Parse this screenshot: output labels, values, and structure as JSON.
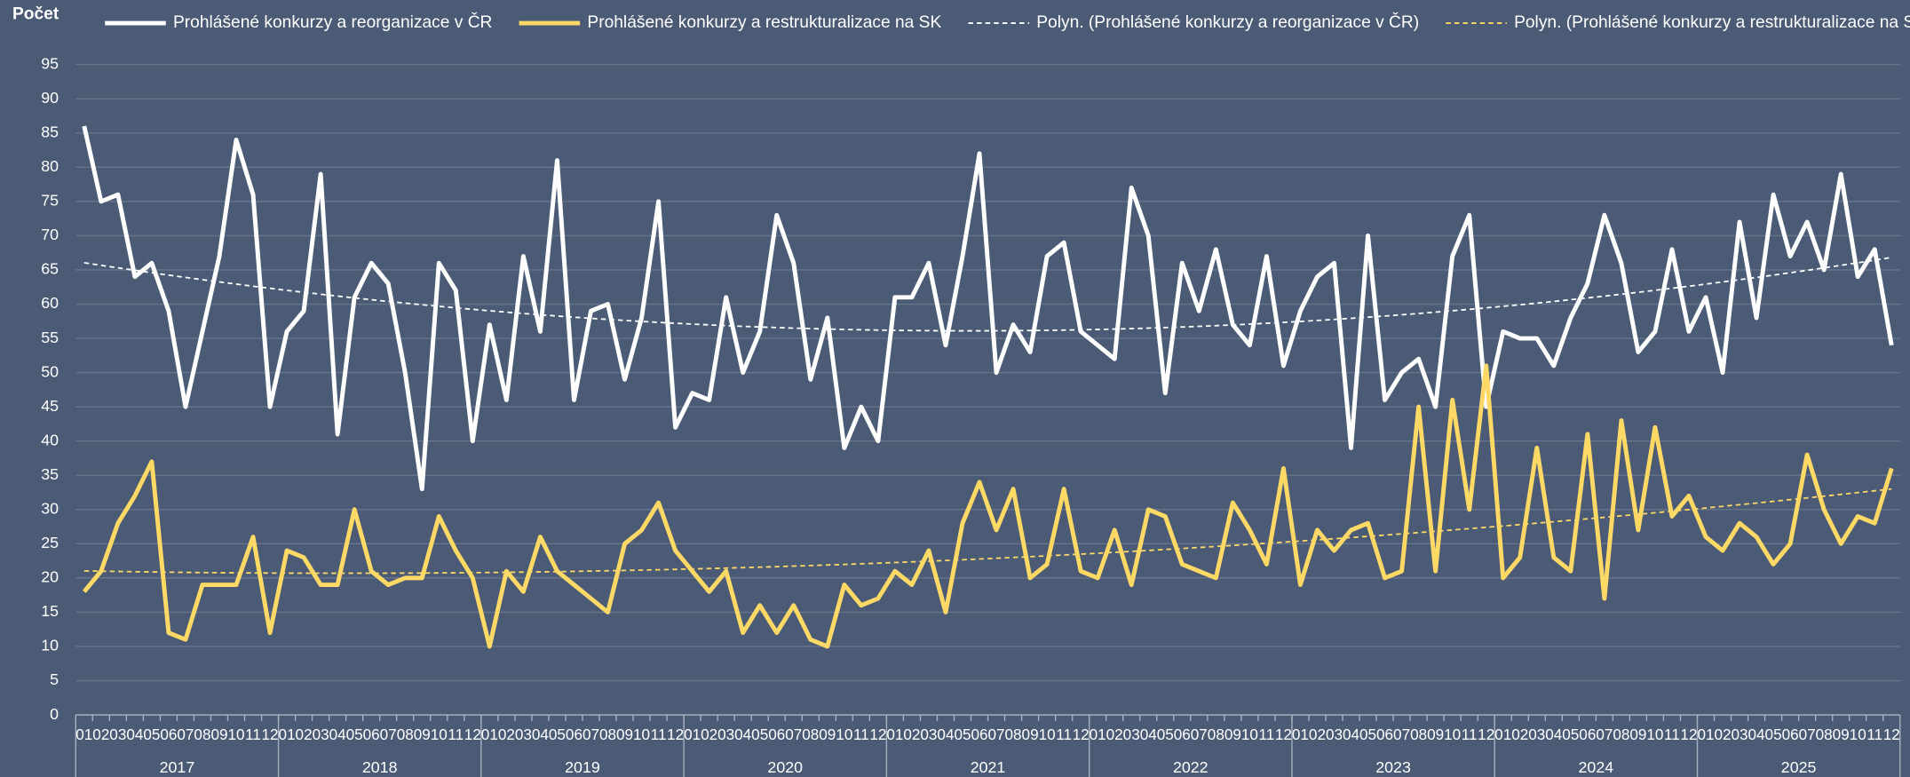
{
  "chart_data": {
    "type": "line",
    "y_axis_label": "Počet",
    "ylim": [
      0,
      95
    ],
    "yticks": [
      0,
      5,
      10,
      15,
      20,
      25,
      30,
      35,
      40,
      45,
      50,
      55,
      60,
      65,
      70,
      75,
      80,
      85,
      90,
      95
    ],
    "grid": true,
    "legend": "top",
    "categories": [
      "01",
      "02",
      "03",
      "04",
      "05",
      "06",
      "07",
      "08",
      "09",
      "10",
      "11",
      "12",
      "01",
      "02",
      "03",
      "04",
      "05",
      "06",
      "07",
      "08",
      "09",
      "10",
      "11",
      "12",
      "01",
      "02",
      "03",
      "04",
      "05",
      "06",
      "07",
      "08",
      "09",
      "10",
      "11",
      "12",
      "01",
      "02",
      "03",
      "04",
      "05",
      "06",
      "07",
      "08",
      "09",
      "10",
      "11",
      "12",
      "01",
      "02",
      "03",
      "04",
      "05",
      "06",
      "07",
      "08",
      "09",
      "10",
      "11",
      "12",
      "01",
      "02",
      "03",
      "04",
      "05",
      "06",
      "07",
      "08",
      "09",
      "10",
      "11",
      "12",
      "01",
      "02",
      "03",
      "04",
      "05",
      "06",
      "07",
      "08",
      "09",
      "10",
      "11",
      "12",
      "01",
      "02",
      "03",
      "04",
      "05",
      "06",
      "07",
      "08",
      "09",
      "10",
      "11",
      "12",
      "01",
      "02",
      "03",
      "04",
      "05",
      "06",
      "07",
      "08",
      "09",
      "10",
      "11",
      "12"
    ],
    "year_groups": [
      "2017",
      "2018",
      "2019",
      "2020",
      "2021",
      "2022",
      "2023",
      "2024",
      "2025"
    ],
    "series": [
      {
        "name": "Prohlášené konkurzy a reorganizace v ČR",
        "color": "#ffffff",
        "values": [
          86,
          75,
          76,
          64,
          66,
          59,
          45,
          56,
          67,
          84,
          76,
          45,
          56,
          59,
          79,
          41,
          61,
          66,
          63,
          50,
          33,
          66,
          62,
          40,
          57,
          46,
          67,
          56,
          81,
          46,
          59,
          60,
          49,
          58,
          75,
          42,
          47,
          46,
          61,
          50,
          56,
          73,
          66,
          49,
          58,
          39,
          45,
          40,
          61,
          61,
          66,
          54,
          67,
          82,
          50,
          57,
          53,
          67,
          69,
          56,
          54,
          52,
          77,
          70,
          47,
          66,
          59,
          68,
          57,
          54,
          67,
          51,
          59,
          64,
          66,
          39,
          70,
          46,
          50,
          52,
          45,
          67,
          73,
          45,
          56,
          55,
          55,
          51,
          58,
          63,
          73,
          66,
          53,
          56,
          68,
          56,
          61,
          50,
          72,
          58,
          76,
          67,
          72,
          65,
          79,
          64,
          68,
          54
        ],
        "trendline": {
          "name": "Polyn. (Prohlášené konkurzy a reorganizace v ČR)",
          "order": 2,
          "color": "#ffffff"
        }
      },
      {
        "name": "Prohlášené konkurzy a restrukturalizace na SK",
        "color": "#ffd966",
        "values": [
          18,
          21,
          28,
          32,
          37,
          12,
          11,
          19,
          19,
          19,
          26,
          12,
          24,
          23,
          19,
          19,
          30,
          21,
          19,
          20,
          20,
          29,
          24,
          20,
          10,
          21,
          18,
          26,
          21,
          19,
          17,
          15,
          25,
          27,
          31,
          24,
          21,
          18,
          21,
          12,
          16,
          12,
          16,
          11,
          10,
          19,
          16,
          17,
          21,
          19,
          24,
          15,
          28,
          34,
          27,
          33,
          20,
          22,
          33,
          21,
          20,
          27,
          19,
          30,
          29,
          22,
          21,
          20,
          31,
          27,
          22,
          36,
          19,
          27,
          24,
          27,
          28,
          20,
          21,
          45,
          21,
          46,
          30,
          51,
          20,
          23,
          39,
          23,
          21,
          41,
          17,
          43,
          27,
          42,
          29,
          32,
          26,
          24,
          28,
          26,
          22,
          25,
          38,
          30,
          25,
          29,
          28,
          36
        ],
        "trendline": {
          "name": "Polyn. (Prohlášené konkurzy a restrukturalizace na SK)",
          "order": 2,
          "color": "#ffd966"
        }
      }
    ]
  }
}
